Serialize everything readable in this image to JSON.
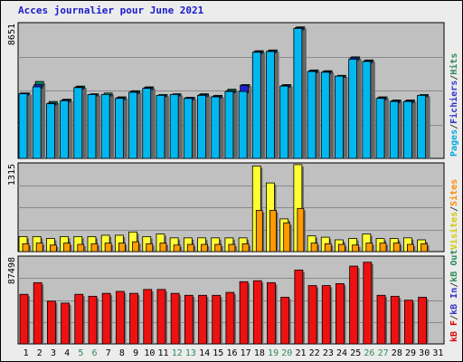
{
  "chart_data": {
    "type": "bar",
    "title": "Acces journalier pour June 2021",
    "categories": [
      "1",
      "2",
      "3",
      "4",
      "5",
      "6",
      "7",
      "8",
      "9",
      "10",
      "11",
      "12",
      "13",
      "14",
      "15",
      "16",
      "17",
      "18",
      "19",
      "20",
      "21",
      "22",
      "23",
      "24",
      "25",
      "26",
      "27",
      "28",
      "29",
      "30",
      "31"
    ],
    "weekend_days": [
      "5",
      "6",
      "12",
      "13",
      "19",
      "20",
      "26",
      "27"
    ],
    "panels": [
      {
        "id": "top",
        "ymax_label": "8651",
        "ylim": [
          0,
          8651
        ],
        "legend": [
          {
            "label": "Pages",
            "color": "#00aadd"
          },
          {
            "label": "/",
            "color": "#444444"
          },
          {
            "label": "Fichiers",
            "color": "#3333cc"
          },
          {
            "label": "/",
            "color": "#444444"
          },
          {
            "label": "Hits",
            "color": "#2e8b57"
          }
        ],
        "series": [
          {
            "name": "Hits",
            "color": "#008c5a",
            "values": [
              4250,
              5000,
              3700,
              3850,
              4700,
              4200,
              4250,
              4000,
              4400,
              4650,
              4150,
              4200,
              3970,
              4200,
              4100,
              4500,
              4800,
              7000,
              7050,
              4800,
              8550,
              5750,
              5700,
              5400,
              6600,
              6400,
              4000,
              3800,
              3800,
              4150,
              0
            ]
          },
          {
            "name": "Fichiers",
            "color": "#2222cc",
            "values": [
              4250,
              4800,
              3600,
              3800,
              4650,
              4150,
              4150,
              3950,
              4350,
              4600,
              4100,
              4150,
              3950,
              4150,
              4050,
              4400,
              4750,
              6950,
              7000,
              4750,
              8500,
              5700,
              5650,
              5350,
              6550,
              6350,
              3950,
              3750,
              3750,
              4100,
              0
            ]
          },
          {
            "name": "Pages",
            "color": "#00b8f0",
            "values": [
              4200,
              4650,
              3550,
              3750,
              4600,
              4150,
              4150,
              3900,
              4300,
              4550,
              4100,
              4150,
              3900,
              4100,
              4000,
              4350,
              4350,
              6900,
              6950,
              4700,
              8450,
              5650,
              5600,
              5350,
              6450,
              6300,
              3900,
              3700,
              3700,
              4100,
              0
            ]
          }
        ]
      },
      {
        "id": "middle",
        "ymax_label": "1315",
        "ylim": [
          0,
          1315
        ],
        "legend": [
          {
            "label": "Visites",
            "color": "#cccc00"
          },
          {
            "label": "/",
            "color": "#444444"
          },
          {
            "label": "Sites",
            "color": "#ff8800"
          }
        ],
        "series": [
          {
            "name": "Visites",
            "color": "#ffff33",
            "values": [
              230,
              230,
              200,
              230,
              230,
              230,
              250,
              250,
              300,
              230,
              270,
              210,
              210,
              210,
              210,
              210,
              210,
              1310,
              1050,
              500,
              1330,
              240,
              220,
              180,
              200,
              270,
              200,
              200,
              210,
              180,
              0
            ]
          },
          {
            "name": "Sites",
            "color": "#ff9a00",
            "values": [
              120,
              130,
              100,
              130,
              110,
              120,
              130,
              130,
              150,
              120,
              130,
              100,
              110,
              110,
              110,
              110,
              120,
              630,
              630,
              440,
              660,
              130,
              120,
              110,
              100,
              130,
              130,
              130,
              110,
              120,
              0
            ]
          }
        ]
      },
      {
        "id": "bottom",
        "ymax_label": "87498",
        "ylim": [
          0,
          87498
        ],
        "legend": [
          {
            "label": "kB F",
            "color": "#dd0000"
          },
          {
            "label": "/",
            "color": "#444444"
          },
          {
            "label": "kB In",
            "color": "#3333cc"
          },
          {
            "label": "/",
            "color": "#444444"
          },
          {
            "label": "kB Out",
            "color": "#2e8b57"
          }
        ],
        "series": [
          {
            "name": "kB F",
            "color": "#ee1111",
            "values": [
              51000,
              63000,
              44000,
              42000,
              51000,
              49000,
              52000,
              54000,
              52000,
              56000,
              56000,
              52000,
              50000,
              50000,
              50000,
              53000,
              64000,
              65000,
              63000,
              48000,
              76000,
              60000,
              60000,
              62000,
              80000,
              84000,
              50000,
              49000,
              45000,
              48000,
              0
            ]
          }
        ]
      }
    ]
  }
}
